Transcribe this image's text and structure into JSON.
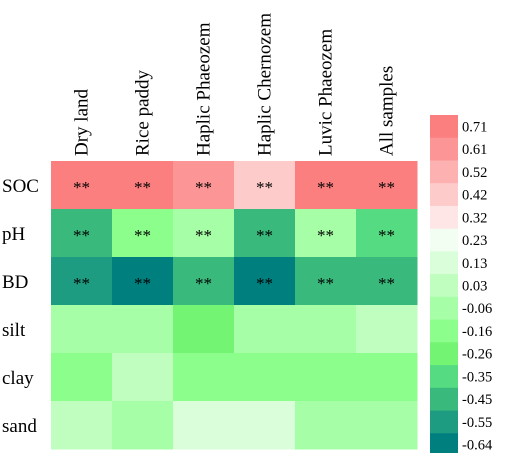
{
  "chart_data": {
    "type": "heatmap",
    "columns": [
      "Dry land",
      "Rice paddy",
      "Haplic Phaeozem",
      "Haplic Chernozem",
      "Luvic Phaeozem",
      "All samples"
    ],
    "rows": [
      "SOC",
      "pH",
      "BD",
      "silt",
      "clay",
      "sand"
    ],
    "values": [
      [
        0.68,
        0.68,
        0.58,
        0.44,
        0.68,
        0.68
      ],
      [
        -0.4,
        -0.14,
        -0.07,
        -0.5,
        -0.02,
        -0.36
      ],
      [
        -0.52,
        -0.62,
        -0.42,
        -0.62,
        -0.46,
        -0.48
      ],
      [
        -0.04,
        -0.08,
        -0.3,
        -0.1,
        -0.1,
        0.0
      ],
      [
        -0.18,
        0.0,
        -0.16,
        -0.16,
        -0.14,
        -0.2
      ],
      [
        0.04,
        -0.04,
        0.14,
        0.14,
        -0.06,
        -0.07
      ]
    ],
    "significance": [
      [
        "**",
        "**",
        "**",
        "**",
        "**",
        "**"
      ],
      [
        "**",
        "**",
        "**",
        "**",
        "**",
        "**"
      ],
      [
        "**",
        "**",
        "**",
        "**",
        "**",
        "**"
      ],
      [
        "",
        "",
        "",
        "",
        "",
        ""
      ],
      [
        "",
        "",
        "",
        "",
        "",
        ""
      ],
      [
        "",
        "",
        "",
        "",
        "",
        ""
      ]
    ],
    "legend": {
      "labels": [
        "0.71",
        "0.61",
        "0.52",
        "0.42",
        "0.32",
        "0.23",
        "0.13",
        "0.03",
        "-0.06",
        "-0.16",
        "-0.26",
        "-0.35",
        "-0.45",
        "-0.55",
        "-0.64"
      ],
      "colors": [
        "#fc7f7f",
        "#fc9696",
        "#fdb1b1",
        "#fecbcb",
        "#fee6e6",
        "#f3fef3",
        "#dafeda",
        "#bffebf",
        "#a6fea6",
        "#8cfe8c",
        "#73f573",
        "#55dc82",
        "#39b97c",
        "#1d9c82",
        "#007f7f"
      ],
      "placement": "right"
    }
  }
}
